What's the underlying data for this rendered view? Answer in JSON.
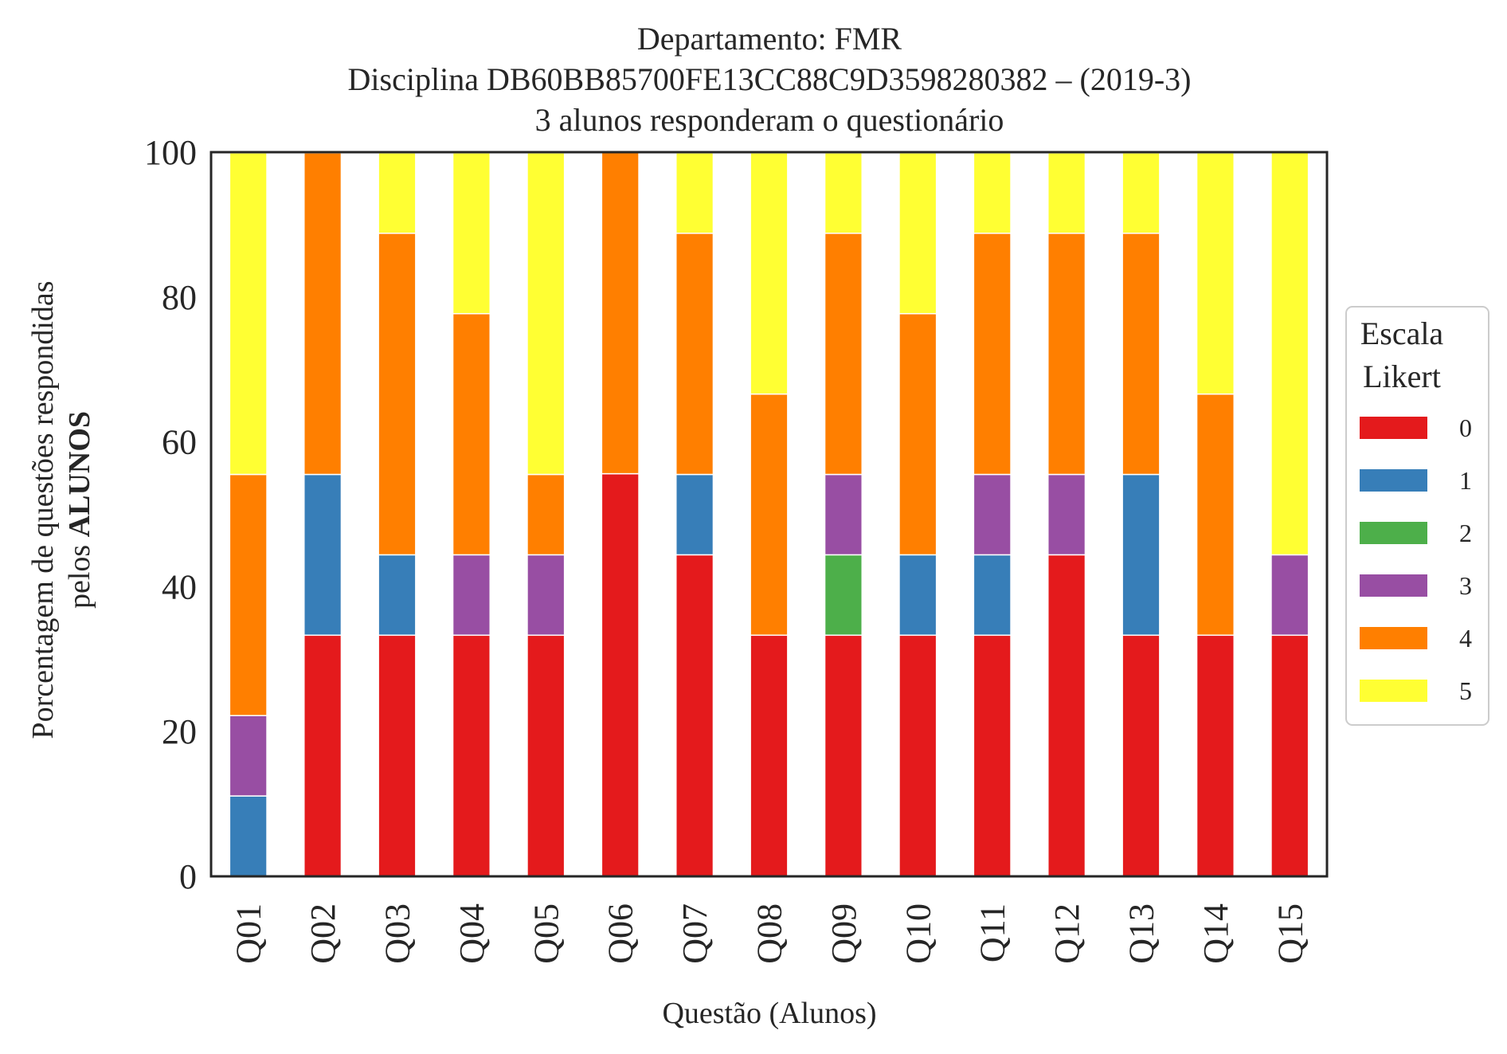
{
  "chart_data": {
    "type": "bar",
    "stacked": true,
    "title_lines": [
      "Departamento: FMR",
      "Disciplina DB60BB85700FE13CC88C9D3598280382 – (2019-3)",
      "3 alunos responderam o questionário"
    ],
    "xlabel": "Questão (Alunos)",
    "ylabel_line1": "Porcentagem de questões respondidas",
    "ylabel_line2_prefix": "pelos ",
    "ylabel_line2_bold": "ALUNOS",
    "ylim": [
      0,
      100
    ],
    "yticks": [
      "0",
      "20",
      "40",
      "60",
      "80",
      "100"
    ],
    "grid": false,
    "categories": [
      "Q01",
      "Q02",
      "Q03",
      "Q04",
      "Q05",
      "Q06",
      "Q07",
      "Q08",
      "Q09",
      "Q10",
      "Q11",
      "Q12",
      "Q13",
      "Q14",
      "Q15"
    ],
    "legend": {
      "title_line1": "Escala",
      "title_line2": "Likert",
      "position": "right"
    },
    "series": [
      {
        "name": "0",
        "color": "#e41a1c",
        "values": [
          0,
          33.3,
          33.3,
          33.3,
          33.3,
          55.6,
          44.4,
          33.3,
          33.3,
          33.3,
          33.3,
          44.4,
          33.3,
          33.3,
          33.3
        ]
      },
      {
        "name": "1",
        "color": "#377eb8",
        "values": [
          11.1,
          22.2,
          11.1,
          0,
          0,
          0,
          11.1,
          0,
          0,
          11.1,
          11.1,
          0,
          22.2,
          0,
          0
        ]
      },
      {
        "name": "2",
        "color": "#4daf4a",
        "values": [
          0,
          0,
          0,
          0,
          0,
          0,
          0,
          0,
          11.1,
          0,
          0,
          0,
          0,
          0,
          0
        ]
      },
      {
        "name": "3",
        "color": "#984ea3",
        "values": [
          11.1,
          0,
          0,
          11.1,
          11.1,
          0,
          0,
          0,
          11.1,
          0,
          11.1,
          11.1,
          0,
          0,
          11.1
        ]
      },
      {
        "name": "4",
        "color": "#ff7f00",
        "values": [
          33.3,
          44.4,
          44.4,
          33.3,
          11.1,
          44.4,
          33.3,
          33.3,
          33.3,
          33.3,
          33.3,
          33.3,
          33.3,
          33.3,
          0
        ]
      },
      {
        "name": "5",
        "color": "#ffff33",
        "values": [
          44.4,
          0,
          11.1,
          22.2,
          44.4,
          0,
          11.1,
          33.3,
          11.1,
          22.2,
          11.1,
          11.1,
          11.1,
          33.3,
          55.6
        ]
      }
    ]
  }
}
